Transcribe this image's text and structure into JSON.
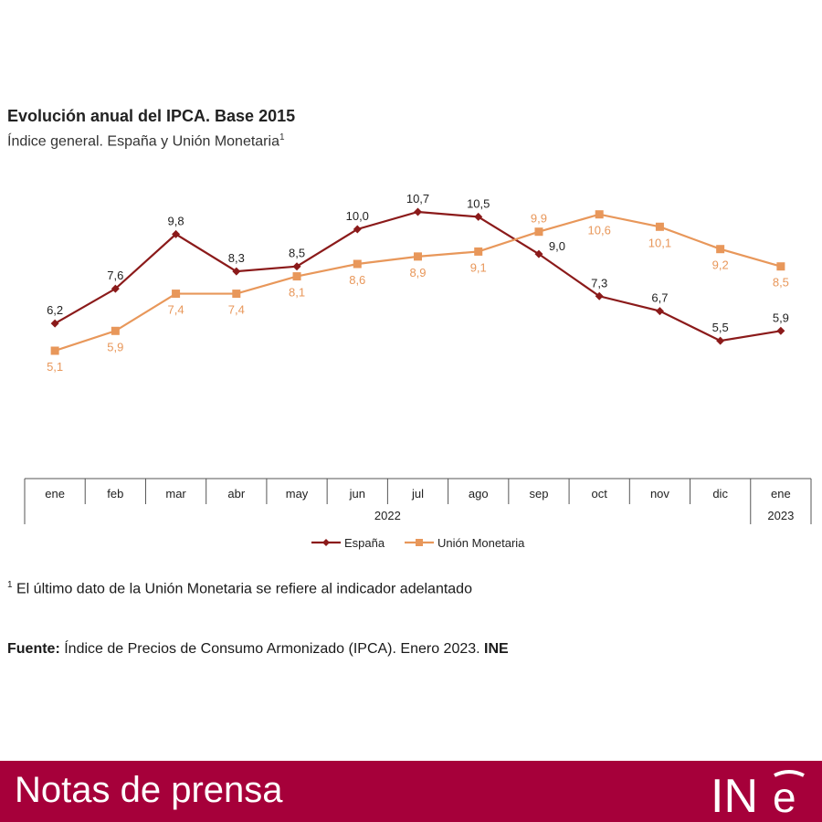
{
  "header": {
    "title": "Evolución anual del IPCA. Base 2015",
    "subtitle": "Índice general. España y Unión Monetaria",
    "subtitle_sup": "1"
  },
  "chart_data": {
    "type": "line",
    "categories": [
      "ene",
      "feb",
      "mar",
      "abr",
      "may",
      "jun",
      "jul",
      "ago",
      "sep",
      "oct",
      "nov",
      "dic",
      "ene"
    ],
    "year_groups": [
      {
        "label": "2022",
        "from": 0,
        "to": 11
      },
      {
        "label": "2023",
        "from": 12,
        "to": 12
      }
    ],
    "series": [
      {
        "name": "España",
        "color": "#8b1a1a",
        "marker": "diamond",
        "values": [
          6.2,
          7.6,
          9.8,
          8.3,
          8.5,
          10.0,
          10.7,
          10.5,
          9.0,
          7.3,
          6.7,
          5.5,
          5.9
        ],
        "labels": [
          "6,2",
          "7,6",
          "9,8",
          "8,3",
          "8,5",
          "10,0",
          "10,7",
          "10,5",
          "9,0",
          "7,3",
          "6,7",
          "5,5",
          "5,9"
        ]
      },
      {
        "name": "Unión Monetaria",
        "color": "#e8975a",
        "marker": "square",
        "values": [
          5.1,
          5.9,
          7.4,
          7.4,
          8.1,
          8.6,
          8.9,
          9.1,
          9.9,
          10.6,
          10.1,
          9.2,
          8.5
        ],
        "labels": [
          "5,1",
          "5,9",
          "7,4",
          "7,4",
          "8,1",
          "8,6",
          "8,9",
          "9,1",
          "9,9",
          "10,6",
          "10,1",
          "9,2",
          "8,5"
        ]
      }
    ],
    "legend_position": "bottom-center",
    "grid": false
  },
  "footnote": {
    "sup": "1",
    "text": " El último dato de la Unión Monetaria se refiere al indicador adelantado"
  },
  "source": {
    "label": "Fuente:",
    "text": " Índice de Precios de Consumo Armonizado (IPCA).  Enero 2023. ",
    "org": "INE"
  },
  "banner": {
    "text": "Notas de prensa",
    "logo": "INE",
    "color": "#a6003a"
  }
}
